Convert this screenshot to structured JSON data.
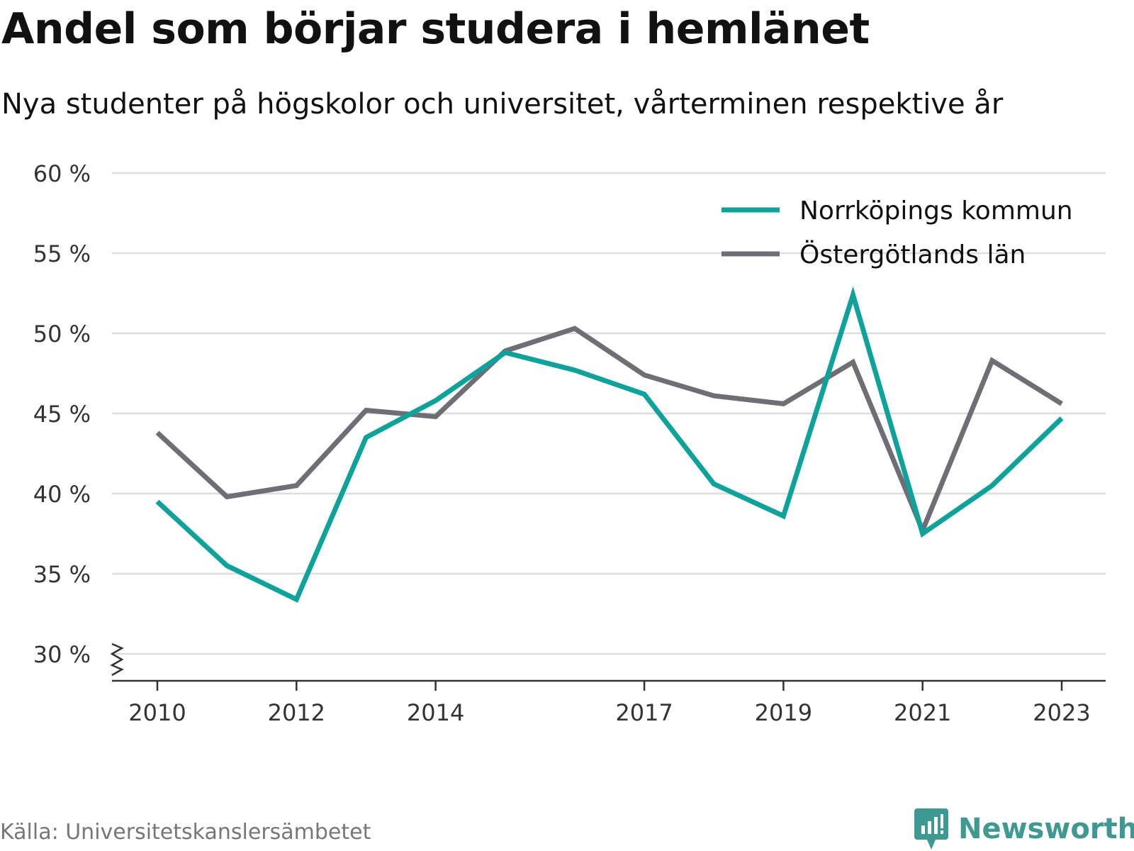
{
  "title": "Andel som börjar studera i hemlänet",
  "subtitle": "Nya studenter på högskolor och universitet, vårterminen respektive år",
  "source": "Källa: Universitetskanslersämbetet",
  "brand": "Newsworthy",
  "colors": {
    "teal": "#0da39a",
    "gray": "#6f6d75",
    "grid": "#dddddd",
    "axis": "#333333",
    "brand": "#3d9991"
  },
  "chart_data": {
    "type": "line",
    "x": [
      2010,
      2011,
      2012,
      2013,
      2014,
      2015,
      2016,
      2017,
      2018,
      2019,
      2020,
      2021,
      2022,
      2023
    ],
    "xticks": [
      2010,
      2012,
      2014,
      2017,
      2019,
      2021,
      2023
    ],
    "xtick_labels": [
      "2010",
      "2012",
      "2014",
      "2017",
      "2019",
      "2021",
      "2023"
    ],
    "ylim": [
      30,
      60
    ],
    "yticks": [
      30,
      35,
      40,
      45,
      50,
      55,
      60
    ],
    "ytick_labels": [
      "30 %",
      "35 %",
      "40 %",
      "45 %",
      "50 %",
      "55 %",
      "60 %"
    ],
    "y_axis_break": true,
    "grid": true,
    "legend_position": "top-right",
    "series": [
      {
        "name": "Norrköpings kommun",
        "color": "#0da39a",
        "values": [
          39.5,
          35.5,
          33.4,
          43.5,
          45.8,
          48.8,
          47.7,
          46.2,
          40.6,
          38.6,
          52.4,
          37.5,
          40.5,
          44.7
        ]
      },
      {
        "name": "Östergötlands län",
        "color": "#6f6d75",
        "values": [
          43.8,
          39.8,
          40.5,
          45.2,
          44.8,
          48.9,
          50.3,
          47.4,
          46.1,
          45.6,
          48.2,
          37.7,
          48.3,
          45.6
        ]
      }
    ]
  }
}
